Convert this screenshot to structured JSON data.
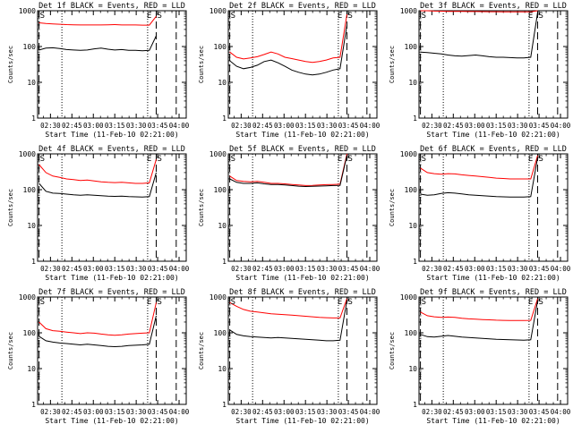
{
  "chart_data": [
    {
      "type": "line",
      "title": "Det 1f BLACK = Events, RED = LLD",
      "xlabel": "Start Time (11-Feb-10 02:21:00)",
      "ylabel": "Counts/sec",
      "yscale": "log",
      "ylim": [
        1,
        1000
      ],
      "xlim": [
        "02:21",
        "04:05"
      ],
      "x_ticks": [
        "02:30",
        "02:45",
        "03:00",
        "03:15",
        "03:30",
        "03:45",
        "04:00"
      ],
      "y_ticks": [
        "1",
        "10",
        "100",
        "1000"
      ],
      "markers": [
        {
          "label": "S",
          "time": "02:22"
        },
        {
          "label": "E",
          "time": "03:42"
        },
        {
          "label": "S",
          "time": "03:44"
        }
      ],
      "dotted_times": [
        "02:38",
        "03:38"
      ],
      "dashed_times": [
        "02:22",
        "03:44",
        "03:58"
      ],
      "series": [
        {
          "name": "RED = LLD",
          "color": "#ff0000",
          "y": [
            460,
            440,
            430,
            420,
            410,
            405,
            400,
            400,
            400,
            400,
            405,
            410,
            400,
            400,
            400,
            395,
            395,
            700
          ]
        },
        {
          "name": "BLACK = Events",
          "color": "#000000",
          "y": [
            80,
            90,
            92,
            88,
            82,
            80,
            78,
            80,
            86,
            90,
            84,
            80,
            82,
            78,
            78,
            76,
            78,
            200
          ]
        }
      ]
    },
    {
      "type": "line",
      "title": "Det 2f BLACK = Events, RED = LLD",
      "xlabel": "Start Time (11-Feb-10 02:21:00)",
      "ylabel": "Counts/sec",
      "yscale": "log",
      "ylim": [
        1,
        1000
      ],
      "xlim": [
        "02:21",
        "04:05"
      ],
      "x_ticks": [
        "02:30",
        "02:45",
        "03:00",
        "03:15",
        "03:30",
        "03:45",
        "04:00"
      ],
      "y_ticks": [
        "1",
        "10",
        "100",
        "1000"
      ],
      "markers": [
        {
          "label": "S",
          "time": "02:22"
        },
        {
          "label": "E",
          "time": "03:42"
        },
        {
          "label": "S",
          "time": "03:44"
        }
      ],
      "dotted_times": [
        "02:38",
        "03:38"
      ],
      "dashed_times": [
        "02:22",
        "03:44",
        "03:58"
      ],
      "series": [
        {
          "name": "RED = LLD",
          "color": "#ff0000",
          "y": [
            70,
            50,
            45,
            48,
            52,
            60,
            70,
            62,
            50,
            46,
            42,
            38,
            36,
            38,
            42,
            48,
            50,
            800
          ]
        },
        {
          "name": "BLACK = Events",
          "color": "#000000",
          "y": [
            40,
            28,
            24,
            26,
            30,
            38,
            42,
            35,
            28,
            22,
            19,
            17,
            16,
            17,
            19,
            22,
            24,
            400
          ]
        }
      ]
    },
    {
      "type": "line",
      "title": "Det 3f BLACK = Events, RED = LLD",
      "xlabel": "Start Time (11-Feb-10 02:21:00)",
      "ylabel": "Counts/sec",
      "yscale": "log",
      "ylim": [
        1,
        1000
      ],
      "xlim": [
        "02:21",
        "04:05"
      ],
      "x_ticks": [
        "02:30",
        "02:45",
        "03:00",
        "03:15",
        "03:30",
        "03:45",
        "04:00"
      ],
      "y_ticks": [
        "1",
        "10",
        "100",
        "1000"
      ],
      "markers": [
        {
          "label": "S",
          "time": "02:22"
        },
        {
          "label": "E",
          "time": "03:42"
        },
        {
          "label": "S",
          "time": "03:44"
        }
      ],
      "dotted_times": [
        "02:38",
        "03:38"
      ],
      "dashed_times": [
        "02:22",
        "03:44",
        "03:58"
      ],
      "series": [
        {
          "name": "RED = LLD",
          "color": "#ff0000",
          "y": [
            1000,
            1000,
            980,
            970,
            960,
            960,
            955,
            950,
            950,
            945,
            940,
            940,
            935,
            930,
            930,
            930,
            930,
            1000
          ]
        },
        {
          "name": "BLACK = Events",
          "color": "#000000",
          "y": [
            70,
            68,
            65,
            62,
            58,
            55,
            54,
            56,
            58,
            55,
            52,
            50,
            50,
            49,
            48,
            48,
            50,
            900
          ]
        }
      ]
    },
    {
      "type": "line",
      "title": "Det 4f BLACK = Events, RED = LLD",
      "xlabel": "Start Time (11-Feb-10 02:21:00)",
      "ylabel": "Counts/sec",
      "yscale": "log",
      "ylim": [
        1,
        1000
      ],
      "xlim": [
        "02:21",
        "04:05"
      ],
      "x_ticks": [
        "02:30",
        "02:45",
        "03:00",
        "03:15",
        "03:30",
        "03:45",
        "04:00"
      ],
      "y_ticks": [
        "1",
        "10",
        "100",
        "1000"
      ],
      "markers": [
        {
          "label": "S",
          "time": "02:22"
        },
        {
          "label": "E",
          "time": "03:42"
        },
        {
          "label": "S",
          "time": "03:44"
        }
      ],
      "dotted_times": [
        "02:38",
        "03:38"
      ],
      "dashed_times": [
        "02:22",
        "03:44",
        "03:58"
      ],
      "series": [
        {
          "name": "RED = LLD",
          "color": "#ff0000",
          "y": [
            500,
            300,
            240,
            220,
            200,
            190,
            180,
            185,
            175,
            165,
            160,
            158,
            160,
            155,
            150,
            150,
            155,
            700
          ]
        },
        {
          "name": "BLACK = Events",
          "color": "#000000",
          "y": [
            150,
            90,
            80,
            78,
            75,
            72,
            70,
            72,
            70,
            68,
            66,
            65,
            66,
            64,
            63,
            62,
            64,
            300
          ]
        }
      ]
    },
    {
      "type": "line",
      "title": "Det 5f BLACK = Events, RED = LLD",
      "xlabel": "Start Time (11-Feb-10 02:21:00)",
      "ylabel": "Counts/sec",
      "yscale": "log",
      "ylim": [
        1,
        1000
      ],
      "xlim": [
        "02:21",
        "04:05"
      ],
      "x_ticks": [
        "02:30",
        "02:45",
        "03:00",
        "03:15",
        "03:30",
        "03:45",
        "04:00"
      ],
      "y_ticks": [
        "1",
        "10",
        "100",
        "1000"
      ],
      "markers": [
        {
          "label": "S",
          "time": "02:22"
        },
        {
          "label": "E",
          "time": "03:42"
        },
        {
          "label": "S",
          "time": "03:44"
        }
      ],
      "dotted_times": [
        "02:38",
        "03:38"
      ],
      "dashed_times": [
        "02:22",
        "03:44",
        "03:58"
      ],
      "series": [
        {
          "name": "RED = LLD",
          "color": "#ff0000",
          "y": [
            240,
            180,
            170,
            165,
            170,
            160,
            150,
            150,
            145,
            140,
            135,
            130,
            132,
            135,
            138,
            140,
            142,
            1000
          ]
        },
        {
          "name": "BLACK = Events",
          "color": "#000000",
          "y": [
            200,
            160,
            150,
            150,
            155,
            145,
            140,
            140,
            135,
            130,
            125,
            122,
            124,
            126,
            128,
            130,
            132,
            900
          ]
        }
      ]
    },
    {
      "type": "line",
      "title": "Det 6f BLACK = Events, RED = LLD",
      "xlabel": "Start Time (11-Feb-10 02:21:00)",
      "ylabel": "Counts/sec",
      "yscale": "log",
      "ylim": [
        1,
        1000
      ],
      "xlim": [
        "02:21",
        "04:05"
      ],
      "x_ticks": [
        "02:30",
        "02:45",
        "03:00",
        "03:15",
        "03:30",
        "03:45",
        "04:00"
      ],
      "y_ticks": [
        "1",
        "10",
        "100",
        "1000"
      ],
      "markers": [
        {
          "label": "S",
          "time": "02:22"
        },
        {
          "label": "E",
          "time": "03:42"
        },
        {
          "label": "S",
          "time": "03:44"
        }
      ],
      "dotted_times": [
        "02:38",
        "03:38"
      ],
      "dashed_times": [
        "02:22",
        "03:44",
        "03:58"
      ],
      "series": [
        {
          "name": "RED = LLD",
          "color": "#ff0000",
          "y": [
            400,
            300,
            280,
            270,
            280,
            275,
            260,
            250,
            240,
            230,
            220,
            210,
            205,
            200,
            200,
            200,
            200,
            900
          ]
        },
        {
          "name": "BLACK = Events",
          "color": "#000000",
          "y": [
            75,
            70,
            72,
            78,
            82,
            80,
            76,
            72,
            70,
            68,
            66,
            64,
            63,
            62,
            62,
            62,
            64,
            800
          ]
        }
      ]
    },
    {
      "type": "line",
      "title": "Det 7f BLACK = Events, RED = LLD",
      "xlabel": "Start Time (11-Feb-10 02:21:00)",
      "ylabel": "Counts/sec",
      "yscale": "log",
      "ylim": [
        1,
        1000
      ],
      "xlim": [
        "02:21",
        "04:05"
      ],
      "x_ticks": [
        "02:30",
        "02:45",
        "03:00",
        "03:15",
        "03:30",
        "03:45",
        "04:00"
      ],
      "y_ticks": [
        "1",
        "10",
        "100",
        "1000"
      ],
      "markers": [
        {
          "label": "S",
          "time": "02:22"
        },
        {
          "label": "E",
          "time": "03:42"
        },
        {
          "label": "S",
          "time": "03:44"
        }
      ],
      "dotted_times": [
        "02:38",
        "03:38"
      ],
      "dashed_times": [
        "02:22",
        "03:44",
        "03:58"
      ],
      "series": [
        {
          "name": "RED = LLD",
          "color": "#ff0000",
          "y": [
            200,
            130,
            115,
            110,
            105,
            100,
            95,
            100,
            98,
            92,
            88,
            85,
            88,
            92,
            95,
            98,
            100,
            700
          ]
        },
        {
          "name": "BLACK = Events",
          "color": "#000000",
          "y": [
            80,
            60,
            55,
            52,
            50,
            48,
            46,
            48,
            46,
            44,
            42,
            41,
            42,
            44,
            45,
            46,
            48,
            300
          ]
        }
      ]
    },
    {
      "type": "line",
      "title": "Det 8f BLACK = Events, RED = LLD",
      "xlabel": "Start Time (11-Feb-10 02:21:00)",
      "ylabel": "Counts/sec",
      "yscale": "log",
      "ylim": [
        1,
        1000
      ],
      "xlim": [
        "02:21",
        "04:05"
      ],
      "x_ticks": [
        "02:30",
        "02:45",
        "03:00",
        "03:15",
        "03:30",
        "03:45",
        "04:00"
      ],
      "y_ticks": [
        "1",
        "10",
        "100",
        "1000"
      ],
      "markers": [
        {
          "label": "S",
          "time": "02:22"
        },
        {
          "label": "E",
          "time": "03:42"
        },
        {
          "label": "S",
          "time": "03:44"
        }
      ],
      "dotted_times": [
        "02:38",
        "03:38"
      ],
      "dashed_times": [
        "02:22",
        "03:44",
        "03:58"
      ],
      "series": [
        {
          "name": "RED = LLD",
          "color": "#ff0000",
          "y": [
            700,
            550,
            450,
            400,
            380,
            360,
            340,
            330,
            320,
            310,
            300,
            290,
            280,
            270,
            265,
            260,
            260,
            900
          ]
        },
        {
          "name": "BLACK = Events",
          "color": "#000000",
          "y": [
            120,
            90,
            82,
            78,
            76,
            74,
            72,
            74,
            72,
            70,
            68,
            66,
            64,
            62,
            60,
            60,
            62,
            800
          ]
        }
      ]
    },
    {
      "type": "line",
      "title": "Det 9f BLACK = Events, RED = LLD",
      "xlabel": "Start Time (11-Feb-10 02:21:00)",
      "ylabel": "Counts/sec",
      "yscale": "log",
      "ylim": [
        1,
        1000
      ],
      "xlim": [
        "02:21",
        "04:05"
      ],
      "x_ticks": [
        "02:30",
        "02:45",
        "03:00",
        "03:15",
        "03:30",
        "03:45",
        "04:00"
      ],
      "y_ticks": [
        "1",
        "10",
        "100",
        "1000"
      ],
      "markers": [
        {
          "label": "S",
          "time": "02:22"
        },
        {
          "label": "E",
          "time": "03:42"
        },
        {
          "label": "S",
          "time": "03:44"
        }
      ],
      "dotted_times": [
        "02:38",
        "03:38"
      ],
      "dashed_times": [
        "02:22",
        "03:44",
        "03:58"
      ],
      "series": [
        {
          "name": "RED = LLD",
          "color": "#ff0000",
          "y": [
            380,
            300,
            280,
            270,
            275,
            270,
            255,
            245,
            240,
            235,
            230,
            225,
            222,
            220,
            220,
            220,
            222,
            900
          ]
        },
        {
          "name": "BLACK = Events",
          "color": "#000000",
          "y": [
            90,
            78,
            76,
            80,
            84,
            80,
            76,
            74,
            72,
            70,
            68,
            66,
            65,
            64,
            63,
            62,
            64,
            800
          ]
        }
      ]
    }
  ]
}
